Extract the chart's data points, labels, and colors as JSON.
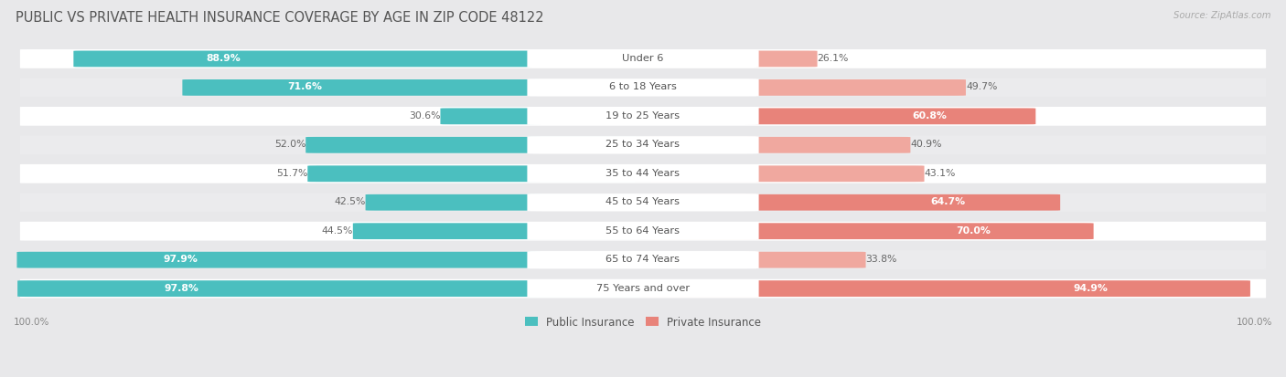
{
  "title": "PUBLIC VS PRIVATE HEALTH INSURANCE COVERAGE BY AGE IN ZIP CODE 48122",
  "source": "Source: ZipAtlas.com",
  "categories": [
    "Under 6",
    "6 to 18 Years",
    "19 to 25 Years",
    "25 to 34 Years",
    "35 to 44 Years",
    "45 to 54 Years",
    "55 to 64 Years",
    "65 to 74 Years",
    "75 Years and over"
  ],
  "public_values": [
    88.9,
    71.6,
    30.6,
    52.0,
    51.7,
    42.5,
    44.5,
    97.9,
    97.8
  ],
  "private_values": [
    26.1,
    49.7,
    60.8,
    40.9,
    43.1,
    64.7,
    70.0,
    33.8,
    94.9
  ],
  "public_color": "#4bbfbf",
  "private_color": "#e8837a",
  "private_color_light": "#f0a89f",
  "background_color": "#e8e8ea",
  "row_bg_colors": [
    "#ffffff",
    "#ebebed",
    "#ffffff",
    "#ebebed",
    "#ffffff",
    "#ebebed",
    "#ffffff",
    "#ebebed",
    "#ffffff"
  ],
  "max_val": 100.0,
  "title_fontsize": 10.5,
  "label_fontsize": 8.2,
  "value_fontsize": 7.8,
  "legend_fontsize": 8.5,
  "axis_fontsize": 7.5
}
